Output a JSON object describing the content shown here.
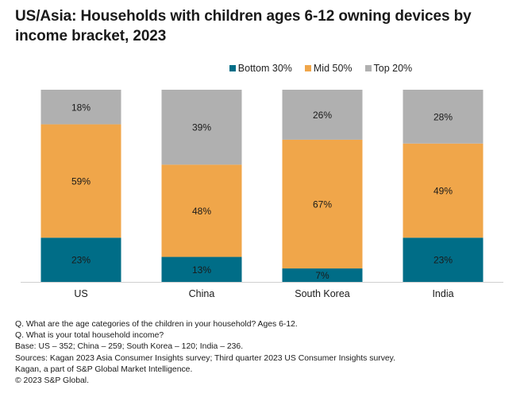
{
  "title": "US/Asia: Households with children ages 6-12 owning devices by income bracket, 2023",
  "legend": [
    {
      "label": "Bottom 30%",
      "color": "#006d87"
    },
    {
      "label": "Mid 50%",
      "color": "#f0a64a"
    },
    {
      "label": "Top 20%",
      "color": "#b0b0b0"
    }
  ],
  "chart_data": {
    "type": "bar",
    "stacked": true,
    "title": "US/Asia: Households with children ages 6-12 owning devices by income bracket, 2023",
    "xlabel": "",
    "ylabel": "",
    "ylim": [
      0,
      100
    ],
    "grid": false,
    "legend_position": "top-center",
    "categories": [
      "US",
      "China",
      "South Korea",
      "India"
    ],
    "series": [
      {
        "name": "Bottom 30%",
        "color": "#006d87",
        "values": [
          23,
          13,
          7,
          23
        ],
        "labels": [
          "23%",
          "13%",
          "7%",
          "23%"
        ]
      },
      {
        "name": "Mid 50%",
        "color": "#f0a64a",
        "values": [
          59,
          48,
          67,
          49
        ],
        "labels": [
          "59%",
          "48%",
          "67%",
          "49%"
        ]
      },
      {
        "name": "Top 20%",
        "color": "#b0b0b0",
        "values": [
          18,
          39,
          26,
          28
        ],
        "labels": [
          "18%",
          "39%",
          "26%",
          "28%"
        ]
      }
    ]
  },
  "footnotes": [
    "Q. What are the age categories of the children in your household? Ages 6-12.",
    "Q. What is your total household income?",
    "Base: US – 352; China – 259; South Korea – 120; India – 236.",
    "Sources: Kagan 2023 Asia Consumer Insights survey; Third quarter 2023 US Consumer Insights survey.",
    "Kagan, a part of S&P Global Market Intelligence.",
    "© 2023 S&P Global."
  ]
}
